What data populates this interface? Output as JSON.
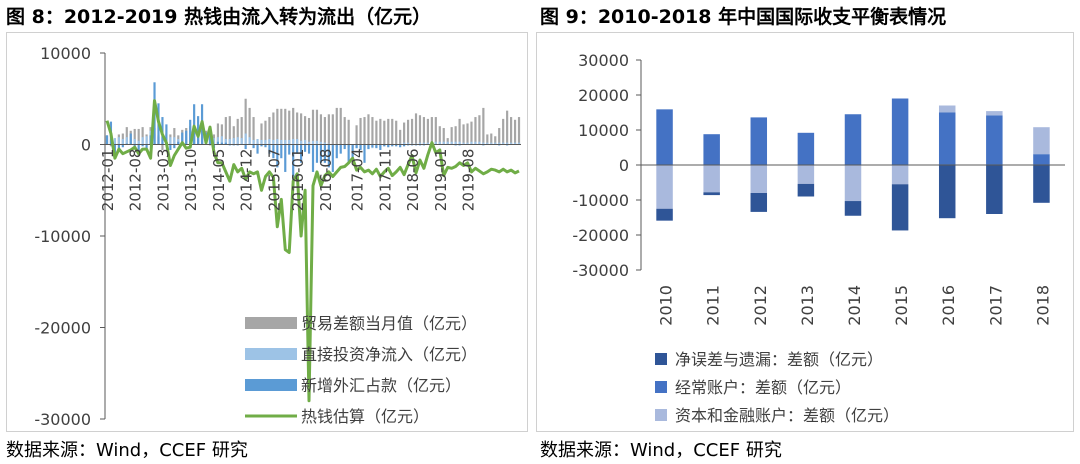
{
  "figure_left": {
    "title": "图 8：2012-2019 热钱由流入转为流出（亿元）",
    "source": "数据来源：Wind，CCEF 研究"
  },
  "figure_right": {
    "title": "图 9：2010-2018 年中国国际收支平衡表情况",
    "source": "数据来源：Wind，CCEF 研究"
  },
  "colors": {
    "trade": "#a6a6a6",
    "fdi": "#9dc3e6",
    "fx": "#5b9bd5",
    "hotmoney": "#70ad47",
    "errors": "#2f5597",
    "current": "#4472c4",
    "capital": "#a9b9dd"
  },
  "chart_data": [
    {
      "type": "bar+line",
      "title": "",
      "ylim": [
        -30000,
        10000
      ],
      "yticks": [
        "10000",
        "0",
        "-10000",
        "-20000",
        "-30000"
      ],
      "xticks": [
        "2012-01",
        "2012-08",
        "2013-03",
        "2013-10",
        "2014-05",
        "2014-12",
        "2015-07",
        "2016-01",
        "2016-08",
        "2017-04",
        "2017-11",
        "2018-06",
        "2019-01",
        "2019-08"
      ],
      "legend": [
        "贸易差额当月值（亿元）",
        "直接投资净流入（亿元）",
        "新增外汇占款（亿元）",
        "热钱估算（亿元）"
      ],
      "series": [
        {
          "name": "贸易差额当月值（亿元）",
          "kind": "bar",
          "values": [
            1000,
            -200,
            300,
            1100,
            1200,
            1900,
            1500,
            1700,
            1700,
            1900,
            1100,
            1900,
            1800,
            1000,
            -600,
            1200,
            1100,
            1800,
            1000,
            1600,
            1800,
            2000,
            2100,
            2100,
            2000,
            1500,
            -100,
            1100,
            2300,
            2200,
            3000,
            3100,
            2000,
            2800,
            3000,
            5000,
            4000,
            3000,
            200,
            2300,
            2600,
            3000,
            3500,
            3900,
            3900,
            3900,
            3700,
            4000,
            3500,
            3400,
            3100,
            2900,
            3800,
            3800,
            3300,
            3000,
            3300,
            3300,
            4000,
            4000,
            3000,
            2700,
            -200,
            2100,
            2900,
            3000,
            3300,
            3000,
            2600,
            2800,
            2600,
            2800,
            2800,
            2600,
            1600,
            2400,
            2700,
            2800,
            3400,
            3200,
            3000,
            2800,
            3000,
            3000,
            2000,
            1800,
            700,
            1900,
            2000,
            2800,
            2200,
            2300,
            2500,
            3000,
            3200,
            4000,
            1100,
            1200,
            900,
            1800,
            2800,
            3700,
            3000,
            2700,
            3000
          ]
        },
        {
          "name": "直接投资净流入（亿元）",
          "kind": "bar",
          "values": [
            900,
            500,
            700,
            800,
            600,
            800,
            700,
            600,
            400,
            800,
            900,
            1500,
            1200,
            800,
            900,
            1000,
            800,
            800,
            600,
            700,
            800,
            900,
            1000,
            1700,
            1200,
            600,
            1000,
            700,
            800,
            900,
            600,
            600,
            700,
            800,
            700,
            1200,
            800,
            500,
            600,
            500,
            500,
            600,
            500,
            600,
            500,
            500,
            500,
            600,
            600,
            400,
            500,
            300,
            400,
            400,
            300,
            200,
            100,
            -100,
            -300,
            0,
            -200,
            -300,
            -400,
            -400,
            -500,
            -400,
            -500,
            -400,
            -300,
            -300,
            -200,
            -200,
            -100,
            0,
            100,
            200,
            200,
            100,
            100,
            200,
            200,
            200,
            300,
            300,
            300,
            300,
            300,
            300,
            300,
            300,
            200,
            200,
            300,
            300,
            300,
            200,
            200,
            200,
            200,
            200,
            200,
            200,
            200,
            200,
            200
          ]
        },
        {
          "name": "新增外汇占款（亿元）",
          "kind": "bar",
          "values": [
            1000,
            2500,
            -1000,
            -600,
            -300,
            100,
            1200,
            -400,
            -1000,
            -200,
            -400,
            1000,
            6800,
            4500,
            3000,
            2200,
            -600,
            -400,
            300,
            1300,
            1500,
            2700,
            4400,
            3100,
            4400,
            1300,
            1200,
            -400,
            300,
            200,
            200,
            -100,
            -100,
            -100,
            0,
            -500,
            0,
            -400,
            -1000,
            -200,
            -300,
            -1000,
            -1500,
            -2500,
            -1500,
            -3000,
            -1100,
            -4000,
            -1000,
            -2000,
            -800,
            -1000,
            -3000,
            -2000,
            -2000,
            -2000,
            -2500,
            -3000,
            -1500,
            -1000,
            -500,
            -2000,
            -1500,
            -400,
            -600,
            -2000,
            -500,
            -300,
            -400,
            -600,
            -200,
            -300,
            -200,
            -200,
            -300,
            -200,
            -100,
            -100,
            -100,
            -100,
            -100,
            0,
            -50,
            0,
            0,
            0,
            0,
            0,
            -100,
            -100,
            -50,
            0,
            0,
            0,
            -50,
            -100,
            -50,
            0,
            0,
            -100,
            0,
            -100,
            0,
            -50,
            0
          ]
        },
        {
          "name": "热钱估算（亿元）",
          "kind": "line",
          "values": [
            2600,
            1200,
            -1500,
            -500,
            -1000,
            -800,
            -600,
            -300,
            -1000,
            -500,
            -500,
            -1500,
            4800,
            2500,
            1100,
            200,
            -2300,
            -1200,
            -500,
            200,
            -400,
            -300,
            2000,
            900,
            2500,
            200,
            1900,
            -900,
            -2000,
            -2000,
            -3000,
            -4000,
            -2200,
            -3000,
            -2600,
            -3800,
            -3000,
            -3200,
            -3000,
            -5000,
            -3500,
            -3000,
            -3600,
            -9000,
            -6000,
            -11500,
            -11800,
            -4000,
            -3200,
            -10000,
            -5000,
            -28000,
            -4500,
            -3000,
            -4500,
            -3400,
            -3000,
            -3500,
            -3000,
            -2500,
            -2400,
            -2000,
            -1500,
            -2800,
            -2500,
            -3000,
            -2800,
            -3200,
            -2700,
            -3500,
            -3000,
            -2600,
            -3400,
            -3000,
            -2500,
            -3300,
            -2200,
            -1200,
            -3100,
            -1700,
            -2600,
            -1100,
            200,
            -900,
            -600,
            -3400,
            -2500,
            -2600,
            -2400,
            -2000,
            -2300,
            -2000,
            -3000,
            -2600,
            -2900,
            -3200,
            -3000,
            -2700,
            -2800,
            -3000,
            -2700,
            -3000,
            -2800,
            -3100,
            -2900
          ]
        }
      ]
    },
    {
      "type": "bar",
      "stacked": true,
      "title": "",
      "ylim": [
        -30000,
        30000
      ],
      "yticks": [
        "30000",
        "20000",
        "10000",
        "0",
        "-10000",
        "-20000",
        "-30000"
      ],
      "categories": [
        "2010",
        "2011",
        "2012",
        "2013",
        "2014",
        "2015",
        "2016",
        "2017",
        "2018"
      ],
      "legend": [
        "净误差与遗漏：差额（亿元）",
        "经常账户：差额（亿元）",
        "资本和金融账户：差额（亿元）"
      ],
      "series": [
        {
          "name": "净误差与遗漏：差额（亿元）",
          "values": [
            -3400,
            -800,
            -5400,
            -3600,
            -4200,
            -13200,
            -15200,
            -14000,
            -10800
          ]
        },
        {
          "name": "经常账户：差额（亿元）",
          "values": [
            15900,
            8800,
            13600,
            9200,
            14500,
            19000,
            15000,
            14200,
            3100
          ]
        },
        {
          "name": "资本和金融账户：差额（亿元）",
          "values": [
            -12500,
            -7800,
            -8000,
            -5400,
            -10300,
            -5500,
            2000,
            1200,
            7700
          ]
        }
      ]
    }
  ]
}
